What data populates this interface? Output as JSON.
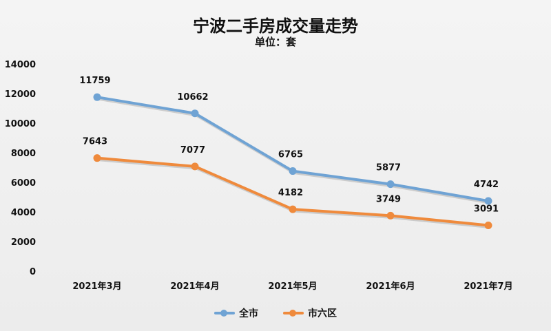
{
  "chart_data": {
    "type": "line",
    "title": "宁波二手房成交量走势",
    "subtitle": "单位：套",
    "xlabel": "",
    "ylabel": "",
    "categories": [
      "2021年3月",
      "2021年4月",
      "2021年5月",
      "2021年6月",
      "2021年7月"
    ],
    "ylim": [
      0,
      14000
    ],
    "yticks": [
      0,
      2000,
      4000,
      6000,
      8000,
      10000,
      12000,
      14000
    ],
    "grid": false,
    "legend_position": "bottom",
    "series": [
      {
        "name": "全市",
        "color": "#6fa3d4",
        "values": [
          11759,
          10662,
          6765,
          5877,
          4742
        ]
      },
      {
        "name": "市六区",
        "color": "#ef8a3c",
        "values": [
          7643,
          7077,
          4182,
          3749,
          3091
        ]
      }
    ]
  }
}
